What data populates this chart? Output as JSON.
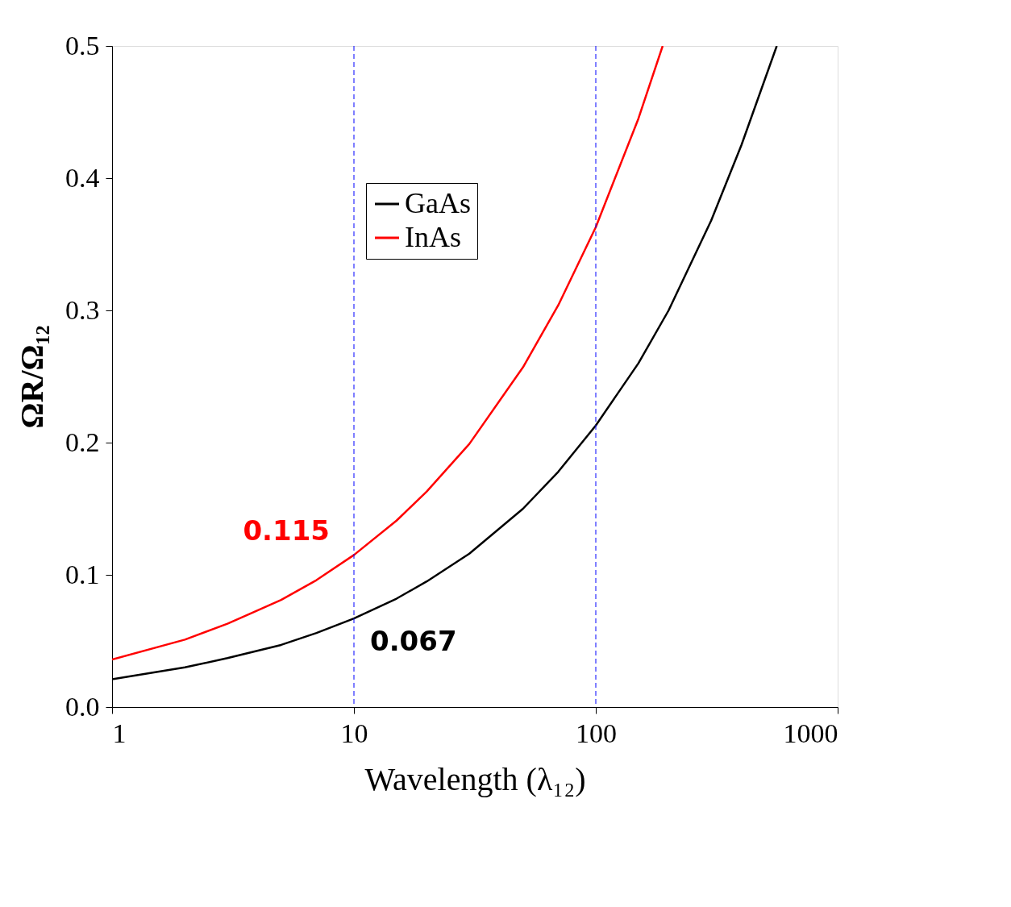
{
  "chart_data": {
    "type": "line",
    "xlabel": "Wavelength (λ₁₂)",
    "ylabel": "ΩR/Ω₁₂",
    "log": "x",
    "xlim": [
      1,
      1000
    ],
    "xticks": [
      1,
      10,
      100,
      1000
    ],
    "ylim": [
      0,
      0.5
    ],
    "yticks": [
      {
        "value": 0,
        "label": "0.0"
      },
      0.1,
      0.2,
      0.3,
      0.4,
      0.5
    ],
    "grid": false,
    "legend": "top",
    "line_style": "solid",
    "marker": "none",
    "series": [
      {
        "name": "GaAs",
        "color": "#000000",
        "x": [
          1,
          2,
          3,
          5,
          7,
          10,
          15,
          20,
          30,
          50,
          70,
          100,
          150,
          200,
          300,
          400,
          560
        ],
        "values": [
          0.021,
          0.03,
          0.037,
          0.047,
          0.056,
          0.067,
          0.082,
          0.095,
          0.116,
          0.15,
          0.178,
          0.213,
          0.26,
          0.3,
          0.368,
          0.425,
          0.5
        ]
      },
      {
        "name": "InAs",
        "color": "#ff0000",
        "x": [
          1,
          2,
          3,
          5,
          7,
          10,
          15,
          20,
          30,
          50,
          70,
          100,
          150,
          189
        ],
        "values": [
          0.036,
          0.051,
          0.063,
          0.081,
          0.096,
          0.115,
          0.141,
          0.163,
          0.199,
          0.257,
          0.304,
          0.363,
          0.445,
          0.5
        ]
      }
    ],
    "ref_lines": [
      {
        "axis": "x",
        "value": 10,
        "color": "#0000ff",
        "line_style": "dashed"
      },
      {
        "axis": "x",
        "value": 100,
        "color": "#0000ff",
        "line_style": "dashed"
      }
    ],
    "annotations": [
      {
        "text": "0.115",
        "x": 10,
        "y": 0.115
      },
      {
        "text": "0.067",
        "x": 10,
        "y": 0.067
      }
    ]
  }
}
